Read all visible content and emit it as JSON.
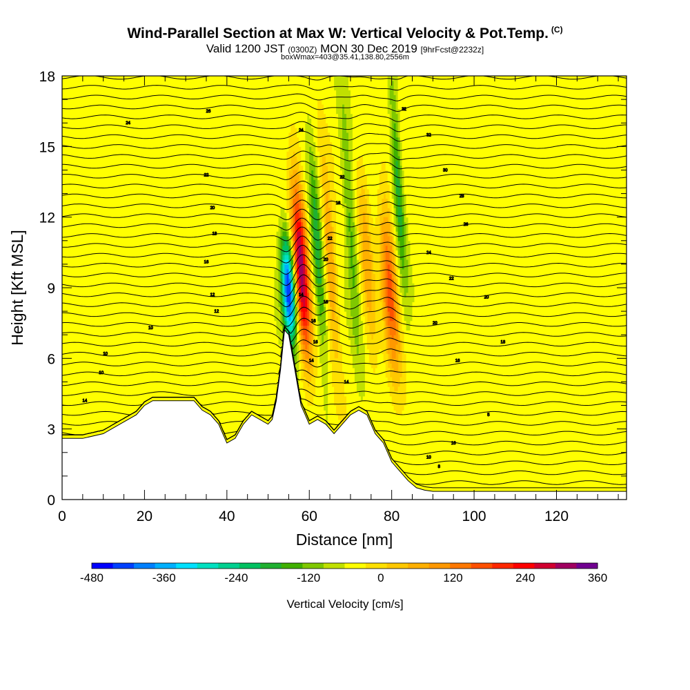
{
  "title": {
    "main": "Wind-Parallel Section at Max W: Vertical Velocity & Pot.Temp.",
    "mark": "(C)",
    "valid_prefix": "Valid 1200 JST",
    "valid_zulu": "(0300Z)",
    "valid_date": "MON 30 Dec 2019",
    "forecast": "[9hrFcst@2232z]",
    "boxmax": "boxWmax=403@35.41,138.80,2556m"
  },
  "chart_data": {
    "type": "heatmap",
    "xlabel": "Distance [nm]",
    "ylabel": "Height [Kft MSL]",
    "xlim": [
      0,
      137
    ],
    "ylim": [
      0,
      18
    ],
    "x_ticks": [
      0,
      20,
      40,
      60,
      80,
      100,
      120
    ],
    "y_ticks": [
      0,
      3,
      6,
      9,
      12,
      15,
      18
    ],
    "colorbar": {
      "label": "Vertical Velocity [cm/s]",
      "min": -480,
      "max": 360,
      "step": 40,
      "tick_labels": [
        -480,
        -360,
        -240,
        -120,
        0,
        120,
        240,
        360
      ],
      "colors": [
        "#0000ff",
        "#0040ff",
        "#0080ff",
        "#00b0ff",
        "#00e0ff",
        "#00e0c0",
        "#00d090",
        "#00c060",
        "#20b030",
        "#40b000",
        "#80c800",
        "#c0e000",
        "#ffff00",
        "#ffe000",
        "#ffc800",
        "#ffb000",
        "#ff9800",
        "#ff7800",
        "#ff5000",
        "#ff2800",
        "#ff0000",
        "#d00030",
        "#a00060",
        "#700090"
      ]
    },
    "terrain_kft": [
      [
        0,
        2.6
      ],
      [
        5,
        2.6
      ],
      [
        10,
        2.8
      ],
      [
        14,
        3.2
      ],
      [
        18,
        3.6
      ],
      [
        20,
        4.0
      ],
      [
        22,
        4.2
      ],
      [
        28,
        4.2
      ],
      [
        32,
        4.2
      ],
      [
        34,
        3.8
      ],
      [
        36,
        3.6
      ],
      [
        38,
        3.2
      ],
      [
        40,
        2.4
      ],
      [
        42,
        2.6
      ],
      [
        44,
        3.2
      ],
      [
        46,
        3.6
      ],
      [
        48,
        3.4
      ],
      [
        50,
        3.2
      ],
      [
        51,
        3.4
      ],
      [
        52,
        4.2
      ],
      [
        53,
        5.5
      ],
      [
        54,
        7.2
      ],
      [
        55,
        7.0
      ],
      [
        56,
        6.0
      ],
      [
        57,
        5.0
      ],
      [
        58,
        4.0
      ],
      [
        59,
        3.6
      ],
      [
        60,
        3.2
      ],
      [
        62,
        3.4
      ],
      [
        64,
        3.2
      ],
      [
        66,
        2.8
      ],
      [
        68,
        3.2
      ],
      [
        70,
        3.6
      ],
      [
        72,
        3.8
      ],
      [
        74,
        3.6
      ],
      [
        76,
        2.8
      ],
      [
        78,
        2.4
      ],
      [
        80,
        1.6
      ],
      [
        82,
        1.2
      ],
      [
        84,
        0.8
      ],
      [
        86,
        0.5
      ],
      [
        88,
        0.4
      ],
      [
        90,
        0.35
      ],
      [
        137,
        0.35
      ]
    ],
    "vertical_velocity_features": [
      {
        "x": 55.0,
        "y_range": [
          6.8,
          11.0
        ],
        "peak_cm_s": -480,
        "width_nm": 2.2
      },
      {
        "x": 58.0,
        "y_range": [
          6.2,
          13.5
        ],
        "peak_cm_s": 403,
        "width_nm": 2.4
      },
      {
        "x": 62.0,
        "y_range": [
          6.0,
          15.0
        ],
        "peak_cm_s": -160,
        "width_nm": 1.8
      },
      {
        "x": 65.0,
        "y_range": [
          6.5,
          14.0
        ],
        "peak_cm_s": 160,
        "width_nm": 1.8
      },
      {
        "x": 70.0,
        "y_range": [
          6.5,
          16.5
        ],
        "peak_cm_s": -120,
        "width_nm": 1.8
      },
      {
        "x": 74.0,
        "y_range": [
          6.0,
          14.0
        ],
        "peak_cm_s": 120,
        "width_nm": 2.0
      },
      {
        "x": 79.5,
        "y_range": [
          5.5,
          12.5
        ],
        "peak_cm_s": 240,
        "width_nm": 2.4
      },
      {
        "x": 81.5,
        "y_range": [
          9.0,
          18.0
        ],
        "peak_cm_s": -160,
        "width_nm": 1.6
      }
    ],
    "isentrope_labels": [
      {
        "x": 35.5,
        "y": 16.5,
        "text": "26"
      },
      {
        "x": 16.0,
        "y": 16.0,
        "text": "24"
      },
      {
        "x": 58.0,
        "y": 15.7,
        "text": "24"
      },
      {
        "x": 83.0,
        "y": 16.6,
        "text": "32"
      },
      {
        "x": 89.0,
        "y": 15.5,
        "text": "32"
      },
      {
        "x": 35.0,
        "y": 13.8,
        "text": "22"
      },
      {
        "x": 68.0,
        "y": 13.7,
        "text": "22"
      },
      {
        "x": 93.0,
        "y": 14.0,
        "text": "30"
      },
      {
        "x": 36.5,
        "y": 12.4,
        "text": "20"
      },
      {
        "x": 67.0,
        "y": 12.6,
        "text": "18"
      },
      {
        "x": 97.0,
        "y": 12.9,
        "text": "28"
      },
      {
        "x": 37.0,
        "y": 11.3,
        "text": "18"
      },
      {
        "x": 65.0,
        "y": 11.1,
        "text": "22"
      },
      {
        "x": 98.0,
        "y": 11.7,
        "text": "26"
      },
      {
        "x": 35.0,
        "y": 10.1,
        "text": "16"
      },
      {
        "x": 64.0,
        "y": 10.2,
        "text": "20"
      },
      {
        "x": 89.0,
        "y": 10.5,
        "text": "24"
      },
      {
        "x": 58.0,
        "y": 8.7,
        "text": "14"
      },
      {
        "x": 36.5,
        "y": 8.7,
        "text": "12"
      },
      {
        "x": 64.0,
        "y": 8.4,
        "text": "18"
      },
      {
        "x": 94.5,
        "y": 9.4,
        "text": "22"
      },
      {
        "x": 103.0,
        "y": 8.6,
        "text": "20"
      },
      {
        "x": 37.5,
        "y": 8.0,
        "text": "12"
      },
      {
        "x": 61.0,
        "y": 7.6,
        "text": "16"
      },
      {
        "x": 90.5,
        "y": 7.5,
        "text": "20"
      },
      {
        "x": 21.5,
        "y": 7.3,
        "text": "10"
      },
      {
        "x": 61.5,
        "y": 6.7,
        "text": "16"
      },
      {
        "x": 107.0,
        "y": 6.7,
        "text": "18"
      },
      {
        "x": 10.5,
        "y": 6.2,
        "text": "10"
      },
      {
        "x": 60.5,
        "y": 5.9,
        "text": "14"
      },
      {
        "x": 96.0,
        "y": 5.9,
        "text": "16"
      },
      {
        "x": 9.5,
        "y": 5.4,
        "text": "10"
      },
      {
        "x": 69.0,
        "y": 5.0,
        "text": "14"
      },
      {
        "x": 5.5,
        "y": 4.2,
        "text": "14"
      },
      {
        "x": 103.5,
        "y": 3.6,
        "text": "5"
      },
      {
        "x": 95.0,
        "y": 2.4,
        "text": "16"
      },
      {
        "x": 89.0,
        "y": 1.8,
        "text": "10"
      },
      {
        "x": 91.5,
        "y": 1.4,
        "text": "8"
      }
    ]
  }
}
